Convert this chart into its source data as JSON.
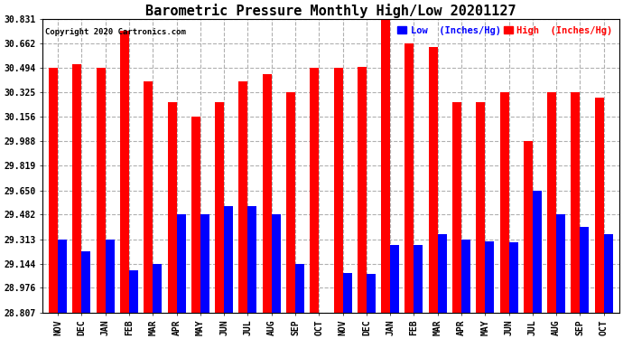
{
  "title": "Barometric Pressure Monthly High/Low 20201127",
  "copyright": "Copyright 2020 Cartronics.com",
  "legend_low_label": "Low  (Inches/Hg)",
  "legend_high_label": "High  (Inches/Hg)",
  "months": [
    "NOV",
    "DEC",
    "JAN",
    "FEB",
    "MAR",
    "APR",
    "MAY",
    "JUN",
    "JUL",
    "AUG",
    "SEP",
    "OCT",
    "NOV",
    "DEC",
    "JAN",
    "FEB",
    "MAR",
    "APR",
    "MAY",
    "JUN",
    "JUL",
    "AUG",
    "SEP",
    "OCT"
  ],
  "high_values": [
    30.494,
    30.52,
    30.494,
    30.75,
    30.4,
    30.26,
    30.156,
    30.26,
    30.4,
    30.45,
    30.325,
    30.494,
    30.494,
    30.5,
    30.831,
    30.662,
    30.64,
    30.26,
    30.26,
    30.325,
    29.988,
    30.325,
    30.325,
    30.29
  ],
  "low_values": [
    29.313,
    29.23,
    29.313,
    29.1,
    29.144,
    29.482,
    29.482,
    29.54,
    29.54,
    29.482,
    29.144,
    28.807,
    29.08,
    29.07,
    29.27,
    29.27,
    29.35,
    29.313,
    29.3,
    29.29,
    29.65,
    29.482,
    29.4,
    29.35
  ],
  "ylim_min": 28.807,
  "ylim_max": 30.831,
  "yticks": [
    28.807,
    28.976,
    29.144,
    29.313,
    29.482,
    29.65,
    29.819,
    29.988,
    30.156,
    30.325,
    30.494,
    30.662,
    30.831
  ],
  "high_color": "#ff0000",
  "low_color": "#0000ff",
  "bg_color": "#ffffff",
  "grid_color": "#b0b0b0",
  "title_fontsize": 11,
  "tick_fontsize": 7,
  "bar_width": 0.38
}
